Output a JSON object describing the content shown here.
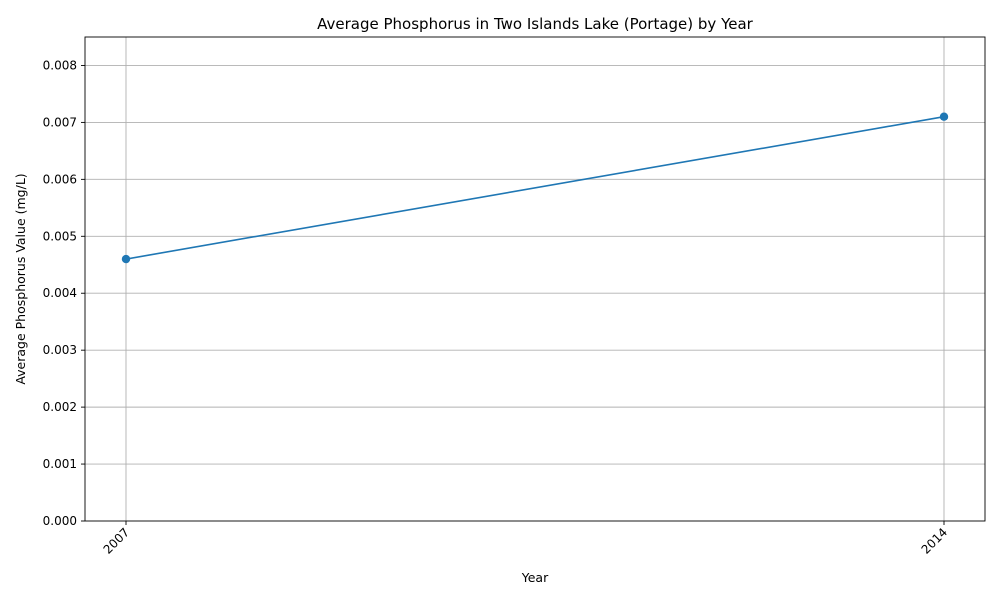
{
  "chart_data": {
    "type": "line",
    "title": "Average Phosphorus in Two Islands Lake (Portage) by Year",
    "xlabel": "Year",
    "ylabel": "Average Phosphorus Value (mg/L)",
    "x": [
      "2007",
      "2014"
    ],
    "series": [
      {
        "values": [
          0.0046,
          0.0071
        ],
        "color": "#1f77b4",
        "marker": "circle"
      }
    ],
    "ylim": [
      0,
      0.0085
    ],
    "yticks": [
      "0.000",
      "0.001",
      "0.002",
      "0.003",
      "0.004",
      "0.005",
      "0.006",
      "0.007",
      "0.008"
    ],
    "ytick_values": [
      0,
      0.001,
      0.002,
      0.003,
      0.004,
      0.005,
      0.006,
      0.007,
      0.008
    ],
    "grid": true,
    "xtick_rotation": 45
  }
}
